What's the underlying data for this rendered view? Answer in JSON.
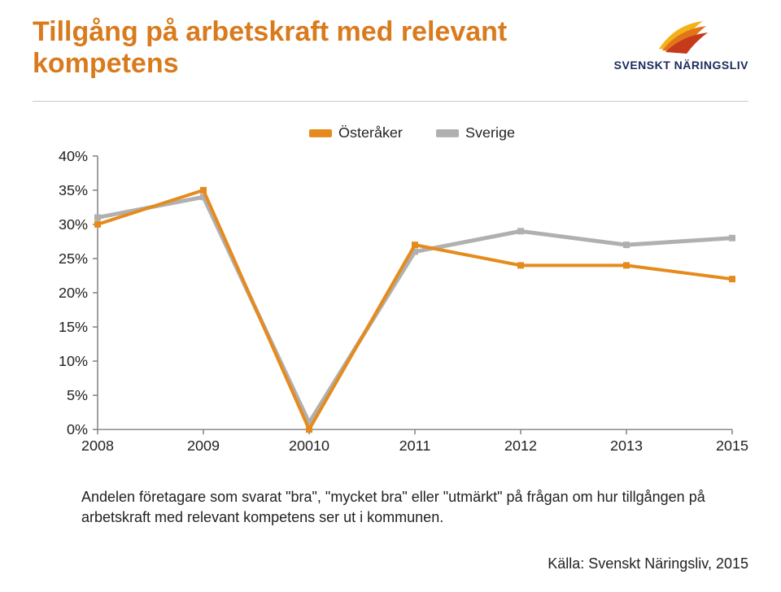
{
  "title": "Tillgång på arbetskraft med relevant kompetens",
  "logo": {
    "name": "SVENSKT NÄRINGSLIV"
  },
  "chart": {
    "type": "line",
    "legend": {
      "items": [
        {
          "label": "Österåker",
          "color": "#e58b1d"
        },
        {
          "label": "Sverige",
          "color": "#b0b0b0"
        }
      ],
      "position": "top-center",
      "label_fontsize": 18
    },
    "categories": [
      "2008",
      "2009",
      "20010",
      "2011",
      "2012",
      "2013",
      "2015"
    ],
    "series": [
      {
        "name": "Österåker",
        "color": "#e58b1d",
        "line_width": 4,
        "marker": "square",
        "marker_size": 8,
        "values": [
          30,
          35,
          0,
          27,
          24,
          24,
          22
        ]
      },
      {
        "name": "Sverige",
        "color": "#b0b0b0",
        "line_width": 5,
        "marker": "square",
        "marker_size": 8,
        "values": [
          31,
          34,
          1,
          26,
          29,
          27,
          28
        ]
      }
    ],
    "y_axis": {
      "min": 0,
      "max": 40,
      "tick_step": 5,
      "tick_labels": [
        "0%",
        "5%",
        "10%",
        "15%",
        "20%",
        "25%",
        "30%",
        "35%",
        "40%"
      ],
      "label_fontsize": 18
    },
    "x_axis": {
      "label_fontsize": 18
    },
    "axis_color": "#808080",
    "background_color": "#ffffff",
    "grid": false
  },
  "description": "Andelen företagare som svarat \"bra\", \"mycket bra\" eller \"utmärkt\" på frågan om hur tillgången på arbetskraft med relevant kompetens ser ut i kommunen.",
  "source": "Källa: Svenskt Näringsliv, 2015"
}
